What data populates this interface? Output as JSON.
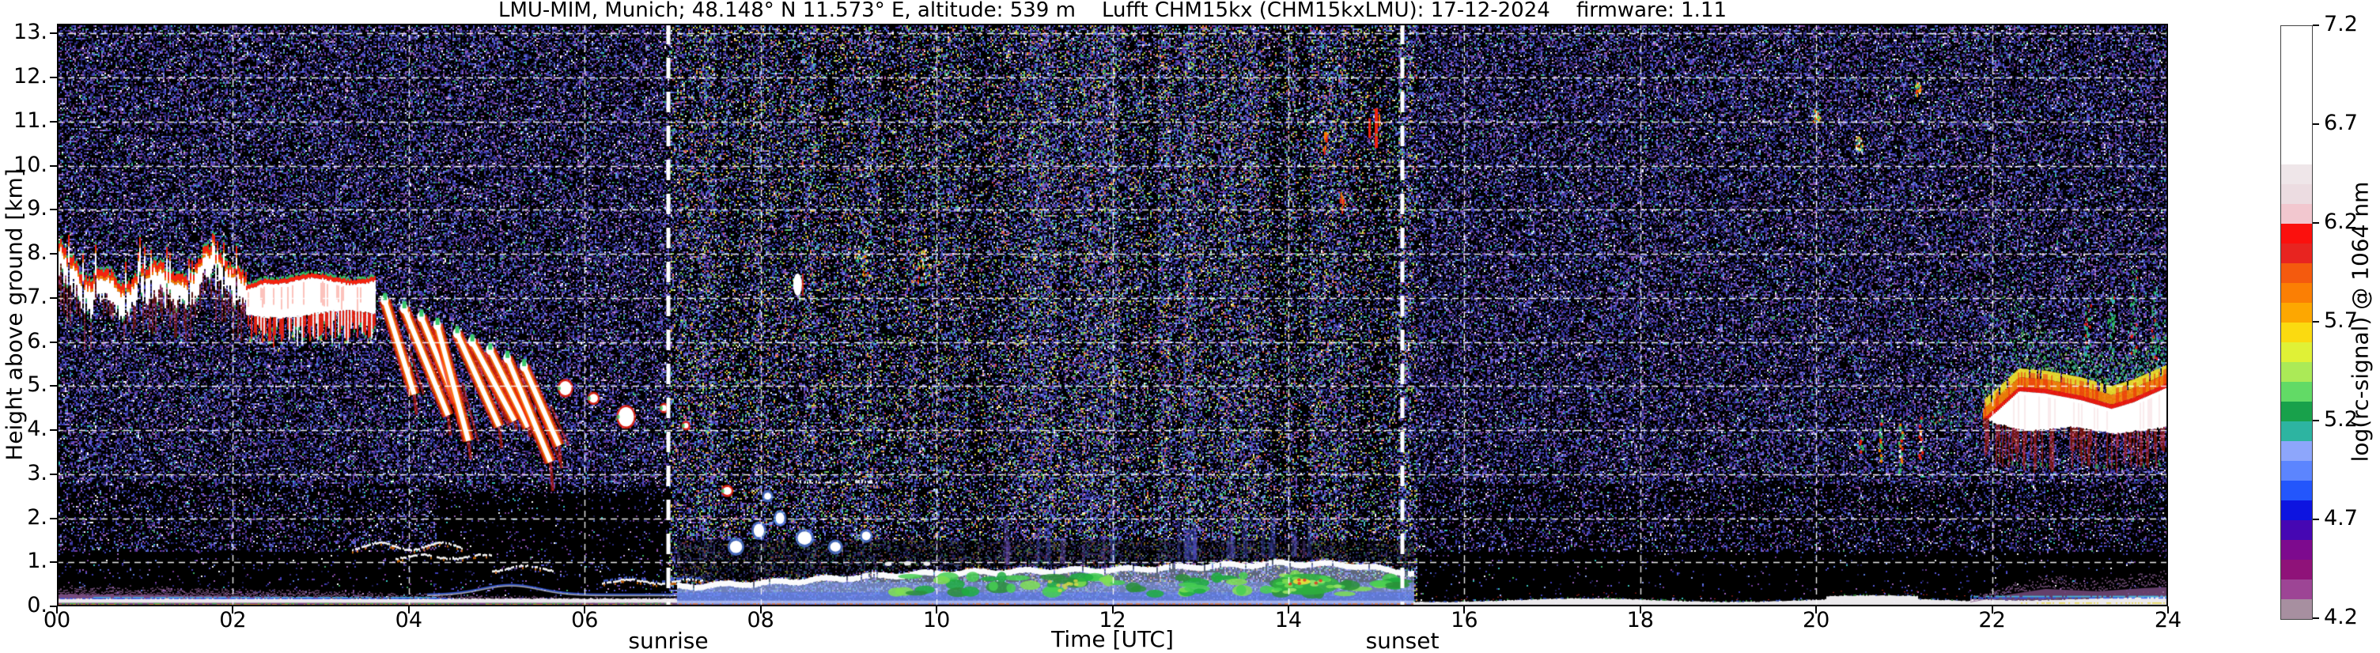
{
  "title": "LMU-MIM, Munich; 48.148° N 11.573° E, altitude: 539 m    Lufft CHM15kx (CHM15kxLMU): 17-12-2024    firmware: 1.11",
  "chart_data": {
    "type": "heatmap",
    "title": "LMU-MIM, Munich; 48.148° N 11.573° E, altitude: 539 m    Lufft CHM15kx (CHM15kxLMU): 17-12-2024    firmware: 1.11",
    "xlabel": "Time [UTC]",
    "ylabel": "Height above ground [km]",
    "xlim": [
      0,
      24
    ],
    "ylim": [
      0,
      13.2
    ],
    "grid": "white dashed, 2 h × 1 km",
    "x_ticks": [
      {
        "hour": 0,
        "label": "00"
      },
      {
        "hour": 2,
        "label": "02"
      },
      {
        "hour": 4,
        "label": "04"
      },
      {
        "hour": 6,
        "label": "06"
      },
      {
        "hour": 8,
        "label": "08"
      },
      {
        "hour": 10,
        "label": "10"
      },
      {
        "hour": 12,
        "label": "12"
      },
      {
        "hour": 14,
        "label": "14"
      },
      {
        "hour": 16,
        "label": "16"
      },
      {
        "hour": 18,
        "label": "18"
      },
      {
        "hour": 20,
        "label": "20"
      },
      {
        "hour": 22,
        "label": "22"
      },
      {
        "hour": 24,
        "label": "24"
      }
    ],
    "y_ticks": [
      {
        "km": 0,
        "label": "0."
      },
      {
        "km": 1,
        "label": "1."
      },
      {
        "km": 2,
        "label": "2."
      },
      {
        "km": 3,
        "label": "3."
      },
      {
        "km": 4,
        "label": "4."
      },
      {
        "km": 5,
        "label": "5."
      },
      {
        "km": 6,
        "label": "6."
      },
      {
        "km": 7,
        "label": "7."
      },
      {
        "km": 8,
        "label": "8."
      },
      {
        "km": 9,
        "label": "9."
      },
      {
        "km": 10,
        "label": "10."
      },
      {
        "km": 11,
        "label": "11."
      },
      {
        "km": 12,
        "label": "12."
      },
      {
        "km": 13,
        "label": "13."
      }
    ],
    "annotations": [
      {
        "label": "sunrise",
        "hour": 6.95
      },
      {
        "label": "sunset",
        "hour": 15.3
      }
    ],
    "colorbar": {
      "label": "log(rc-signal) @ 1064 nm",
      "vmin": 4.2,
      "vmax": 7.2,
      "ticks": [
        {
          "value": 7.2,
          "label": "7.2"
        },
        {
          "value": 6.7,
          "label": "6.7"
        },
        {
          "value": 6.2,
          "label": "6.2"
        },
        {
          "value": 5.7,
          "label": "5.7"
        },
        {
          "value": 5.2,
          "label": "5.2"
        },
        {
          "value": 4.7,
          "label": "4.7"
        },
        {
          "value": 4.2,
          "label": "4.2"
        }
      ],
      "colors": [
        "#a78fa0",
        "#9d4595",
        "#8f1279",
        "#7d0a8e",
        "#4607b3",
        "#0d14e0",
        "#2356fc",
        "#5c85fe",
        "#8da6fb",
        "#2db4a1",
        "#18a14b",
        "#62da66",
        "#abea57",
        "#e0f136",
        "#fbda10",
        "#fda701",
        "#fb7f04",
        "#f45a0e",
        "#e82420",
        "#fb100d",
        "#f2c7cf",
        "#ecdce1",
        "#efe6e9",
        "#ffffff",
        "#ffffff",
        "#ffffff",
        "#ffffff",
        "#ffffff",
        "#ffffff",
        "#ffffff"
      ]
    },
    "noise": {
      "night_density": 0.46,
      "day_density": 0.52,
      "day_region": [
        6.95,
        15.46
      ]
    },
    "features": [
      {
        "kind": "ground_night",
        "h0": 0,
        "h1": 7.05,
        "fuzz_top": [
          [
            0,
            0.4
          ],
          [
            1,
            0.38
          ],
          [
            2,
            0.34
          ],
          [
            3,
            0.3
          ],
          [
            4,
            0.22
          ],
          [
            5,
            0.17
          ],
          [
            6,
            0.14
          ],
          [
            7.05,
            0.12
          ]
        ]
      },
      {
        "kind": "ground_day",
        "h0": 7.05,
        "h1": 15.42,
        "cap": [
          [
            7.05,
            0.5
          ],
          [
            8,
            0.58
          ],
          [
            9.3,
            0.74
          ],
          [
            10,
            0.8
          ],
          [
            11,
            0.85
          ],
          [
            12,
            0.88
          ],
          [
            13,
            0.96
          ],
          [
            14,
            1.03
          ],
          [
            14.7,
            0.99
          ],
          [
            15.42,
            0.8
          ]
        ]
      },
      {
        "kind": "ground_evening",
        "h0": 15.42,
        "h1": 24,
        "fuzz_top": [
          [
            21.75,
            0.2
          ],
          [
            22.2,
            0.5
          ],
          [
            22.6,
            0.72
          ],
          [
            23.2,
            0.62
          ],
          [
            23.7,
            0.75
          ],
          [
            24,
            0.8
          ]
        ]
      },
      {
        "kind": "night_cloud_band",
        "h0": 0,
        "h1": 2.15,
        "thickness": [
          0.5,
          0.85
        ],
        "top": [
          [
            0,
            8.25
          ],
          [
            0.2,
            7.6
          ],
          [
            0.35,
            7.3
          ],
          [
            0.55,
            7.6
          ],
          [
            0.75,
            7.15
          ],
          [
            0.95,
            7.55
          ],
          [
            1.15,
            7.7
          ],
          [
            1.3,
            7.45
          ],
          [
            1.5,
            7.3
          ],
          [
            1.7,
            8.15
          ],
          [
            1.9,
            7.7
          ],
          [
            2.15,
            7.45
          ]
        ]
      },
      {
        "kind": "cloud_mass",
        "h0": 2.15,
        "h1": 3.62,
        "top": 7.45,
        "white_base": 6.6,
        "virga_base": 5.95
      },
      {
        "kind": "descending_streaks",
        "h0": 3.72,
        "h1": 5.65,
        "z_start": 6.95,
        "z_end": 5.45,
        "count": 9,
        "drop_km": [
          1.7,
          2.9
        ]
      },
      {
        "kind": "small_clouds",
        "items": [
          [
            5.78,
            4.95,
            0.07,
            0.16
          ],
          [
            6.1,
            4.72,
            0.05,
            0.1
          ],
          [
            6.47,
            4.3,
            0.09,
            0.22
          ],
          [
            6.9,
            4.5,
            0.03,
            0.07
          ],
          [
            7.15,
            4.1,
            0.03,
            0.06
          ],
          [
            7.62,
            2.62,
            0.05,
            0.09
          ]
        ]
      },
      {
        "kind": "low_lines",
        "segs": [
          [
            3.35,
            4.6,
            1.32,
            0.08
          ],
          [
            3.85,
            4.95,
            1.08,
            0.05
          ],
          [
            4.95,
            5.65,
            0.82,
            0.06
          ],
          [
            6.2,
            7.35,
            0.52,
            0.05
          ]
        ]
      },
      {
        "kind": "low_patches",
        "blobs": [
          [
            7.72,
            1.35,
            0.07,
            0.14
          ],
          [
            7.98,
            1.72,
            0.06,
            0.15
          ],
          [
            8.22,
            2.0,
            0.05,
            0.13
          ],
          [
            8.5,
            1.55,
            0.08,
            0.15
          ],
          [
            8.08,
            2.5,
            0.04,
            0.08
          ],
          [
            8.85,
            1.35,
            0.06,
            0.11
          ],
          [
            9.2,
            1.6,
            0.05,
            0.1
          ]
        ]
      },
      {
        "kind": "dash_line",
        "h0": 8.3,
        "h1": 9.45,
        "z": 2.82
      },
      {
        "kind": "upper_spots",
        "items": [
          [
            8.42,
            7.3,
            0.05,
            0.25,
            "white"
          ],
          [
            9.15,
            7.75,
            0.09,
            0.45,
            "mixed"
          ],
          [
            9.85,
            7.7,
            0.07,
            0.4,
            "mixed"
          ],
          [
            14.6,
            9.15,
            0.04,
            0.3,
            "orange"
          ],
          [
            15.0,
            10.85,
            0.04,
            0.45,
            "red"
          ],
          [
            14.42,
            10.6,
            0.03,
            0.2,
            "orange"
          ],
          [
            20.0,
            11.15,
            0.04,
            0.15,
            "mixed"
          ],
          [
            20.48,
            10.5,
            0.04,
            0.18,
            "mixed"
          ],
          [
            21.15,
            11.75,
            0.03,
            0.15,
            "mixed"
          ]
        ]
      },
      {
        "kind": "evening_plume",
        "envelope": [
          [
            21.3,
            4.2
          ],
          [
            21.6,
            5.0
          ],
          [
            21.85,
            5.9
          ],
          [
            22.0,
            6.7
          ],
          [
            22.15,
            7.45
          ],
          [
            22.3,
            7.0
          ],
          [
            22.5,
            6.35
          ],
          [
            22.8,
            5.9
          ],
          [
            23.1,
            5.7
          ],
          [
            23.4,
            5.55
          ],
          [
            23.75,
            5.75
          ],
          [
            24,
            6.3
          ]
        ],
        "color_top": [
          [
            21.85,
            4.6
          ],
          [
            22.05,
            4.95
          ],
          [
            22.3,
            5.4
          ],
          [
            22.6,
            5.35
          ],
          [
            23.0,
            5.2
          ],
          [
            23.35,
            5.0
          ],
          [
            23.6,
            5.15
          ],
          [
            24,
            5.5
          ]
        ],
        "white_bottom": [
          [
            21.9,
            4.3
          ],
          [
            22.0,
            4.15
          ],
          [
            22.4,
            3.95
          ],
          [
            22.9,
            4.05
          ],
          [
            23.4,
            3.9
          ],
          [
            24,
            4.05
          ]
        ],
        "low_spikes": [
          [
            20.5,
            3.9,
            3.45
          ],
          [
            20.72,
            4.35,
            3.25
          ],
          [
            20.95,
            4.15,
            3.05
          ],
          [
            21.18,
            4.3,
            3.3
          ]
        ],
        "tall_spikes": [
          [
            23.08,
            6.9
          ],
          [
            23.35,
            7.1
          ],
          [
            23.6,
            7.65
          ],
          [
            23.85,
            7.25
          ]
        ]
      }
    ]
  }
}
